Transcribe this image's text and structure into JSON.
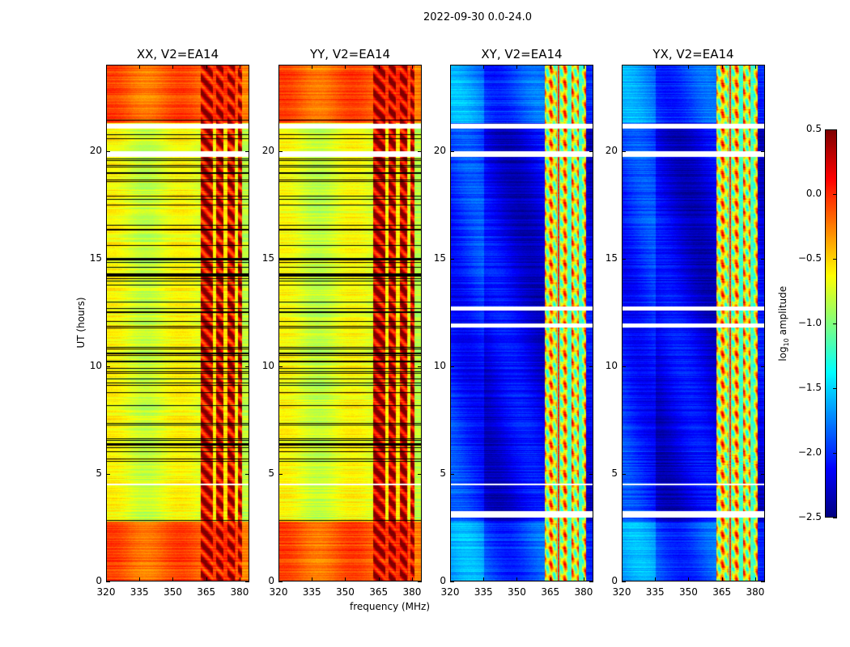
{
  "chart_data": {
    "type": "heatmap",
    "title": "2022-09-30 0.0-24.0",
    "xlabel": "frequency (MHz)",
    "ylabel": "UT (hours)",
    "xlim": [
      320,
      384.4
    ],
    "ylim": [
      0,
      24
    ],
    "xticks": [
      "320",
      "335",
      "350",
      "365",
      "380"
    ],
    "xtick_values": [
      320,
      335,
      350,
      365,
      380
    ],
    "yticks": [
      "0",
      "5",
      "10",
      "15",
      "20"
    ],
    "ytick_values": [
      0,
      5,
      10,
      15,
      20
    ],
    "panels": [
      {
        "title": "XX, V2=EA14",
        "base_level": -0.7,
        "early_late_level": -0.15,
        "rfi_level": 0.25,
        "cross": false
      },
      {
        "title": "YY, V2=EA14",
        "base_level": -0.72,
        "early_late_level": -0.15,
        "rfi_level": 0.3,
        "cross": false
      },
      {
        "title": "XY, V2=EA14",
        "base_level": -2.2,
        "early_late_level": -1.9,
        "rfi_level": -0.6,
        "cross": true
      },
      {
        "title": "YX, V2=EA14",
        "base_level": -2.2,
        "early_late_level": -1.9,
        "rfi_level": -0.6,
        "cross": true
      }
    ],
    "rfi_band_mhz": [
      362.5,
      381
    ],
    "rfi_gaps_mhz": [
      368.5,
      373.5,
      378.5
    ],
    "flagged_gaps_hours": [
      [
        21.05,
        21.27
      ],
      [
        19.75,
        20.0
      ],
      [
        2.97,
        3.3
      ],
      [
        4.48,
        4.55
      ],
      [
        12.6,
        12.8
      ],
      [
        11.8,
        12.0
      ]
    ],
    "black_row_ranges_hours": [
      [
        21.45,
        21.6
      ],
      [
        20.6,
        21.0
      ],
      [
        17.5,
        19.9
      ],
      [
        13.0,
        16.8
      ],
      [
        11.8,
        12.7
      ],
      [
        5.6,
        11.0
      ],
      [
        2.85,
        2.97
      ]
    ],
    "colorbar": {
      "label": "log10 amplitude",
      "label_main": "log",
      "label_sub": "10",
      "label_rest": " amplitude",
      "range": [
        -2.5,
        0.5
      ],
      "ticks": [
        "0.5",
        "0.0",
        "−0.5",
        "−1.0",
        "−1.5",
        "−2.0",
        "−2.5"
      ],
      "tick_values": [
        0.5,
        0.0,
        -0.5,
        -1.0,
        -1.5,
        -2.0,
        -2.5
      ],
      "colormap": "jet"
    }
  }
}
